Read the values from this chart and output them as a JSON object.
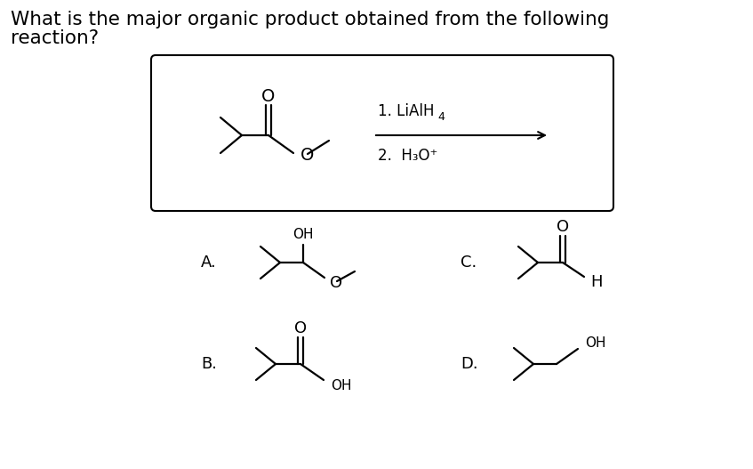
{
  "title_line1": "What is the major organic product obtained from the following",
  "title_line2": "reaction?",
  "label_A": "A.",
  "label_B": "B.",
  "label_C": "C.",
  "label_D": "D.",
  "bg_color": "#ffffff",
  "line_color": "#000000",
  "box_color": "#000000",
  "font_size_title": 15.5,
  "font_size_label": 13,
  "font_size_atom": 13,
  "font_size_reagent": 12,
  "font_size_sub": 9,
  "reagent1_main": "1. LiAlH",
  "reagent1_sub": "4",
  "reagent2": "2.  H₃O⁺",
  "atom_O": "O",
  "atom_OH": "OH",
  "atom_H": "H"
}
